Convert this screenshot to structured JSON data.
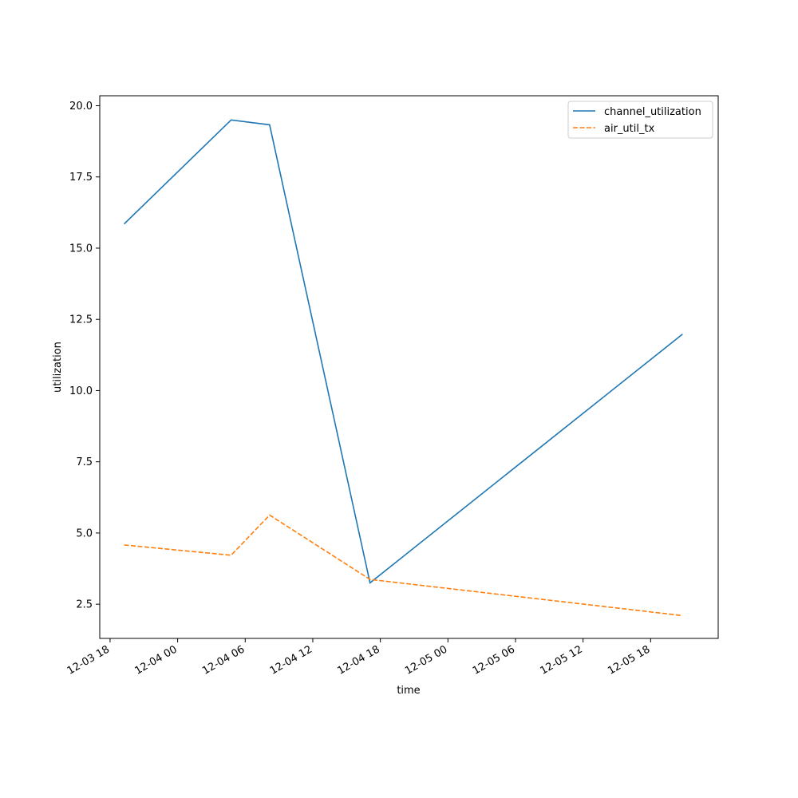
{
  "chart_data": {
    "type": "line",
    "title": "",
    "xlabel": "time",
    "ylabel": "utilization",
    "x": [
      "2023-12-03 19:15",
      "2023-12-04 04:45",
      "2023-12-04 08:10",
      "2023-12-04 17:05",
      "2023-12-05 20:50"
    ],
    "xlim": [
      "2023-12-03 17:05",
      "2023-12-06 00:00"
    ],
    "ylim": [
      1.3,
      20.35
    ],
    "x_tick_labels": [
      "12-03 18",
      "12-04 00",
      "12-04 06",
      "12-04 12",
      "12-04 18",
      "12-05 00",
      "12-05 06",
      "12-05 12",
      "12-05 18"
    ],
    "x_ticks": [
      "2023-12-03 18:00",
      "2023-12-04 00:00",
      "2023-12-04 06:00",
      "2023-12-04 12:00",
      "2023-12-04 18:00",
      "2023-12-05 00:00",
      "2023-12-05 06:00",
      "2023-12-05 12:00",
      "2023-12-05 18:00"
    ],
    "y_ticks": [
      2.5,
      5.0,
      7.5,
      10.0,
      12.5,
      15.0,
      17.5,
      20.0
    ],
    "y_tick_labels": [
      "2.5",
      "5.0",
      "7.5",
      "10.0",
      "12.5",
      "15.0",
      "17.5",
      "20.0"
    ],
    "grid": false,
    "legend_position": "top-right",
    "series": [
      {
        "name": "channel_utilization",
        "values": [
          15.85,
          19.5,
          19.33,
          3.25,
          11.98
        ],
        "color": "#1f77b4",
        "style": "solid"
      },
      {
        "name": "air_util_tx",
        "values": [
          4.58,
          4.22,
          5.63,
          3.37,
          2.1
        ],
        "color": "#ff7f0e",
        "style": "dashed"
      }
    ]
  }
}
